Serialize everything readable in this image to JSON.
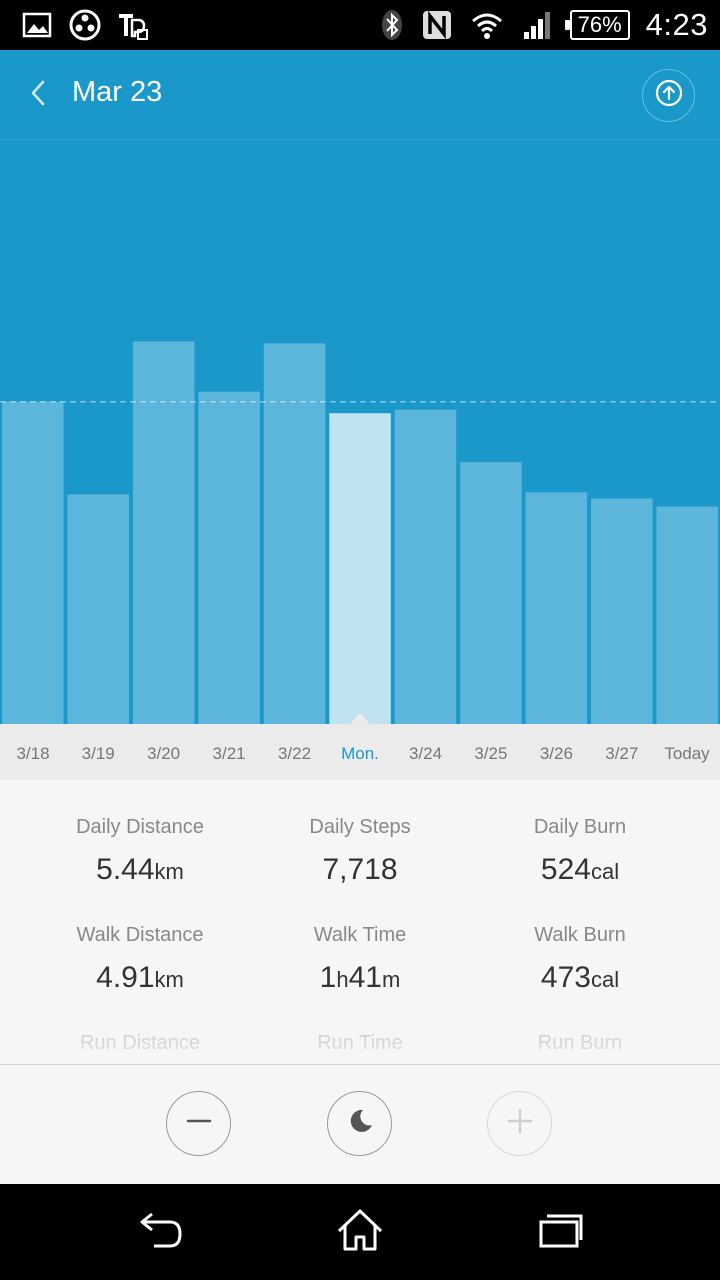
{
  "status_bar": {
    "battery": "76%",
    "time": "4:23",
    "icons": [
      "picture-icon",
      "game-icon",
      "sim-icon",
      "bluetooth-icon",
      "nfc-icon",
      "wifi-icon",
      "signal-icon",
      "battery-icon"
    ]
  },
  "header": {
    "title": "Mar 23",
    "back_icon": "chevron-left-icon",
    "share_icon": "upload-icon"
  },
  "colors": {
    "header_bg": "#1a98ca",
    "bar": "#5cb6db",
    "bar_selected": "#bfe3f1",
    "active_date": "#1a98ca"
  },
  "chart_data": {
    "type": "bar",
    "categories": [
      "3/18",
      "3/19",
      "3/20",
      "3/21",
      "3/22",
      "Mon.",
      "3/24",
      "3/25",
      "3/26",
      "3/27",
      "Today"
    ],
    "values": [
      8000,
      5700,
      9500,
      8250,
      9450,
      7718,
      7800,
      6500,
      5750,
      5600,
      5400
    ],
    "selected_index": 5,
    "goal": 8000,
    "ylim": [
      0,
      14500
    ],
    "title": "",
    "xlabel": "",
    "ylabel": ""
  },
  "stats": [
    {
      "label": "Daily Distance",
      "value": "5.44",
      "unit": "km"
    },
    {
      "label": "Daily Steps",
      "value": "7,718",
      "unit": ""
    },
    {
      "label": "Daily Burn",
      "value": "524",
      "unit": "cal"
    },
    {
      "label": "Walk Distance",
      "value": "4.91",
      "unit": "km"
    },
    {
      "label": "Walk Time",
      "value": "1h41m",
      "unit": ""
    },
    {
      "label": "Walk Burn",
      "value": "473",
      "unit": "cal"
    },
    {
      "label": "Run Distance",
      "value": "",
      "unit": ""
    },
    {
      "label": "Run Time",
      "value": "",
      "unit": ""
    },
    {
      "label": "Run Burn",
      "value": "",
      "unit": ""
    }
  ],
  "actions": {
    "left_icon": "minus-icon",
    "center_icon": "moon-icon",
    "right_icon": "plus-icon"
  },
  "nav": {
    "back_icon": "back-icon",
    "home_icon": "home-icon",
    "recents_icon": "recents-icon"
  }
}
